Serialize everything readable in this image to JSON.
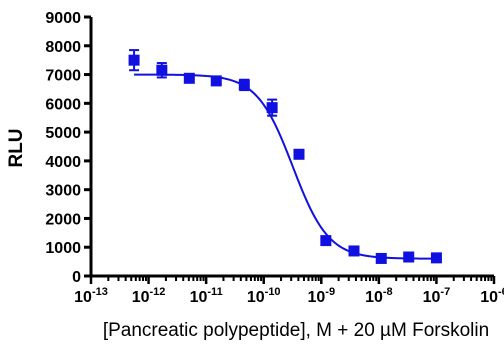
{
  "chart_data": {
    "type": "scatter",
    "xlabel": "[Pancreatic polypeptide], M + 20 µM Forskolin",
    "ylabel": "RLU",
    "x_scale": "log",
    "xlim": [
      1e-13,
      1e-06
    ],
    "ylim": [
      0,
      9000
    ],
    "y_ticks": [
      0,
      1000,
      2000,
      3000,
      4000,
      5000,
      6000,
      7000,
      8000,
      9000
    ],
    "x_tick_labels": [
      {
        "base": "10",
        "exp": "-13"
      },
      {
        "base": "10",
        "exp": "-12"
      },
      {
        "base": "10",
        "exp": "-11"
      },
      {
        "base": "10",
        "exp": "-10"
      },
      {
        "base": "10",
        "exp": "-9"
      },
      {
        "base": "10",
        "exp": "-8"
      },
      {
        "base": "10",
        "exp": "-7"
      },
      {
        "base": "10",
        "exp": "-6"
      }
    ],
    "grid": false,
    "color": "#1010e0",
    "points": [
      {
        "x": 5.6e-13,
        "y": 7500,
        "err": 350
      },
      {
        "x": 1.7e-12,
        "y": 7150,
        "err": 250
      },
      {
        "x": 5.1e-12,
        "y": 6870,
        "err": 100
      },
      {
        "x": 1.5e-11,
        "y": 6780,
        "err": 100
      },
      {
        "x": 4.6e-11,
        "y": 6640,
        "err": 180
      },
      {
        "x": 1.4e-10,
        "y": 5850,
        "err": 280
      },
      {
        "x": 4.1e-10,
        "y": 4230,
        "err": 100
      },
      {
        "x": 1.2e-09,
        "y": 1230,
        "err": 60
      },
      {
        "x": 3.7e-09,
        "y": 870,
        "err": 50
      },
      {
        "x": 1.1e-08,
        "y": 610,
        "err": 40
      },
      {
        "x": 3.3e-08,
        "y": 660,
        "err": 40
      },
      {
        "x": 1e-07,
        "y": 630,
        "err": 40
      }
    ],
    "fit": {
      "model": "four-parameter logistic",
      "top": 7000,
      "bottom": 600,
      "ec50": 3.2e-10,
      "hill": -1.4,
      "x_range": [
        5.6e-13,
        1e-07
      ]
    }
  }
}
